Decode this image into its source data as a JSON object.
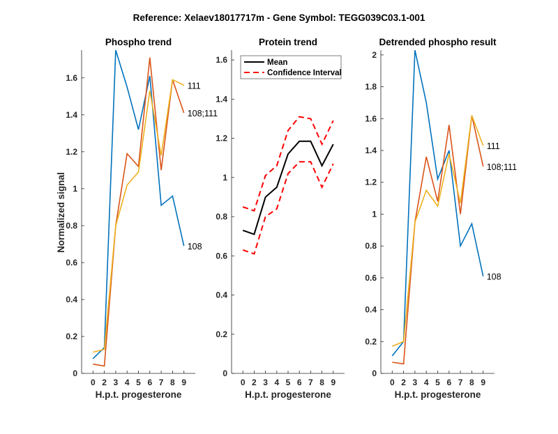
{
  "suptitle": "Reference:  Xelaev18017717m - Gene Symbol:  TEGG039C03.1-001",
  "chart_data": [
    {
      "type": "line",
      "title": "Phospho trend",
      "xlabel": "H.p.t. progesterone",
      "ylabel": "Normalized signal",
      "categories": [
        "0",
        "2",
        "3",
        "4",
        "5",
        "6",
        "7",
        "8",
        "9"
      ],
      "ylim": [
        0,
        1.75
      ],
      "yticks": [
        0,
        0.2,
        0.4,
        0.6,
        0.8,
        1,
        1.2,
        1.4,
        1.6
      ],
      "ytick_labels": [
        "0",
        "0.2",
        "0.4",
        "0.6",
        "0.8",
        "1",
        "1.2",
        "1.4",
        "1.6"
      ],
      "series": [
        {
          "name": "108",
          "color": "#0072BD",
          "values": [
            0.08,
            0.14,
            1.75,
            1.55,
            1.32,
            1.61,
            0.91,
            0.96,
            0.69
          ]
        },
        {
          "name": "108;111",
          "color": "#D95319",
          "values": [
            0.05,
            0.04,
            0.8,
            1.19,
            1.12,
            1.71,
            1.1,
            1.59,
            1.41
          ]
        },
        {
          "name": "111",
          "color": "#EDB120",
          "values": [
            0.115,
            0.13,
            0.8,
            1.02,
            1.09,
            1.53,
            1.18,
            1.59,
            1.56
          ]
        }
      ]
    },
    {
      "type": "line",
      "title": "Protein trend",
      "xlabel": "H.p.t. progesterone",
      "ylabel": "",
      "categories": [
        "0",
        "2",
        "3",
        "4",
        "5",
        "6",
        "7",
        "8",
        "9"
      ],
      "ylim": [
        0,
        1.65
      ],
      "yticks": [
        0,
        0.2,
        0.4,
        0.6,
        0.8,
        1,
        1.2,
        1.4,
        1.6
      ],
      "ytick_labels": [
        "0",
        "0.2",
        "0.4",
        "0.6",
        "0.8",
        "1",
        "1.2",
        "1.4",
        "1.6"
      ],
      "legend": {
        "position": "top-left",
        "entries": [
          "Mean",
          "Confidence Interval"
        ]
      },
      "series": [
        {
          "name": "Mean",
          "color": "#000000",
          "style": "solid",
          "values": [
            0.73,
            0.71,
            0.9,
            0.95,
            1.12,
            1.185,
            1.185,
            1.06,
            1.17
          ]
        },
        {
          "name": "Confidence Interval (upper)",
          "color": "#FF0000",
          "style": "dashed",
          "values": [
            0.85,
            0.83,
            1.01,
            1.06,
            1.24,
            1.31,
            1.3,
            1.17,
            1.29
          ]
        },
        {
          "name": "Confidence Interval (lower)",
          "color": "#FF0000",
          "style": "dashed",
          "values": [
            0.63,
            0.61,
            0.8,
            0.84,
            1.02,
            1.08,
            1.08,
            0.95,
            1.07
          ]
        }
      ]
    },
    {
      "type": "line",
      "title": "Detrended phospho result",
      "xlabel": "H.p.t. progesterone",
      "ylabel": "",
      "categories": [
        "0",
        "2",
        "3",
        "4",
        "5",
        "6",
        "7",
        "8",
        "9"
      ],
      "ylim": [
        0,
        2.03
      ],
      "yticks": [
        0,
        0.2,
        0.4,
        0.6,
        0.8,
        1,
        1.2,
        1.4,
        1.6,
        1.8,
        2
      ],
      "ytick_labels": [
        "0",
        "0.2",
        "0.4",
        "0.6",
        "0.8",
        "1",
        "1.2",
        "1.4",
        "1.6",
        "1.8",
        "2"
      ],
      "series": [
        {
          "name": "108",
          "color": "#0072BD",
          "values": [
            0.11,
            0.2,
            2.03,
            1.7,
            1.22,
            1.4,
            0.8,
            0.94,
            0.61
          ]
        },
        {
          "name": "108;111",
          "color": "#D95319",
          "values": [
            0.07,
            0.06,
            0.95,
            1.36,
            1.08,
            1.56,
            1.0,
            1.62,
            1.3
          ]
        },
        {
          "name": "111",
          "color": "#EDB120",
          "values": [
            0.17,
            0.2,
            0.95,
            1.15,
            1.05,
            1.38,
            1.07,
            1.62,
            1.43
          ]
        }
      ]
    }
  ]
}
